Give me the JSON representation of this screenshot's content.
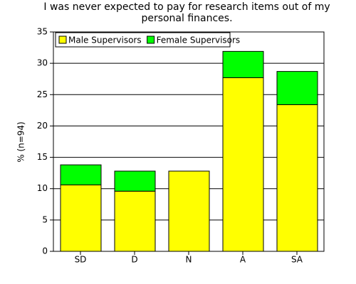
{
  "chart_data": {
    "type": "stacked-bar",
    "title": "I was never expected to pay for research items out of my personal finances.",
    "y_label": "% (n=94)",
    "categories": [
      "SD",
      "D",
      "N",
      "A",
      "SA"
    ],
    "series": [
      {
        "name": "Male Supervisors",
        "color": "#ffff00",
        "values": [
          10.6,
          9.6,
          12.8,
          27.7,
          23.4
        ]
      },
      {
        "name": "Female Supervisors",
        "color": "#00ff00",
        "values": [
          3.2,
          3.2,
          0,
          4.2,
          5.3
        ]
      }
    ],
    "ylim": [
      0,
      35
    ],
    "yticks": [
      0,
      5,
      10,
      15,
      20,
      25,
      30,
      35
    ],
    "grid": true,
    "legend": "top-left"
  }
}
